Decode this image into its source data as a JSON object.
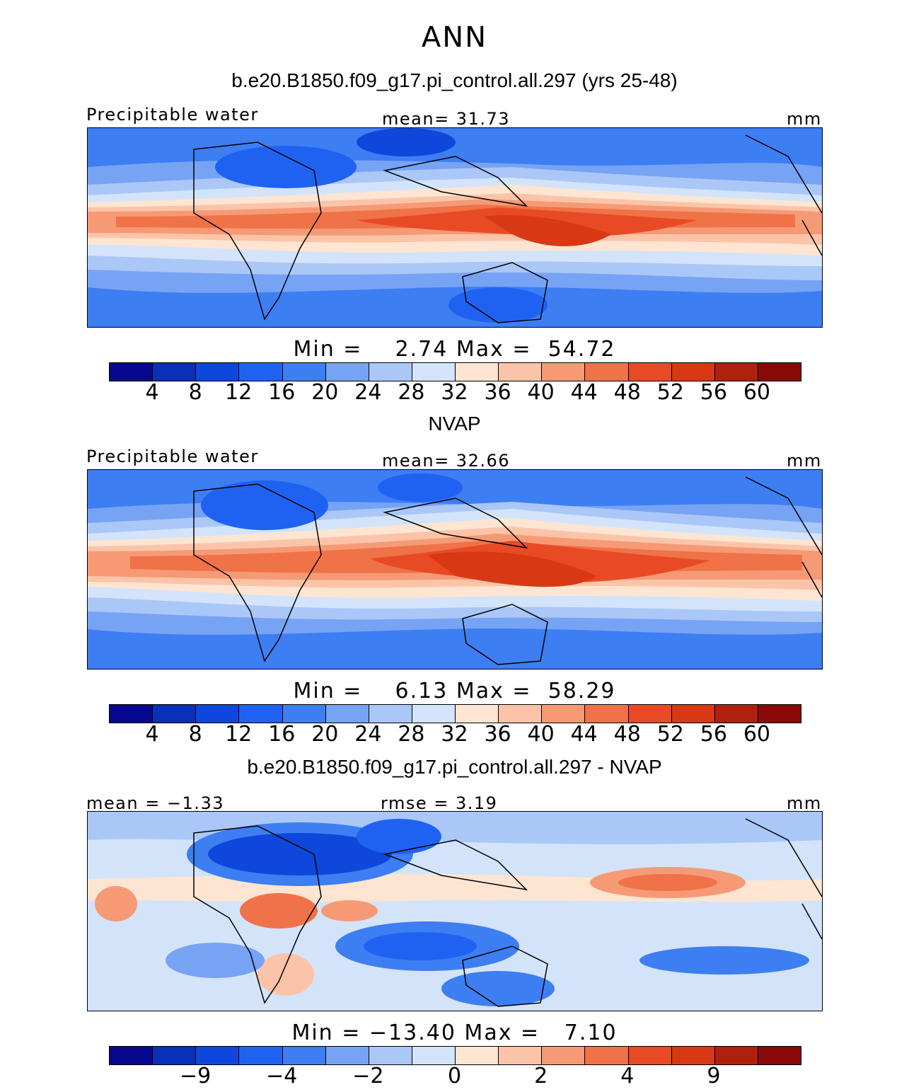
{
  "season": "ANN",
  "colors": [
    "#08088f",
    "#0a2fb8",
    "#0d47db",
    "#1f62f2",
    "#3d7ef2",
    "#77a3f5",
    "#aac7f7",
    "#d3e4fa",
    "#fde5d2",
    "#fbc4a8",
    "#f69a76",
    "#f07248",
    "#e84a26",
    "#d83814",
    "#b0200e",
    "#8a0808"
  ],
  "panels": [
    {
      "title": "b.e20.B1850.f09_g17.pi_control.all.297 (yrs 25-48)",
      "left_label": "Precipitable water",
      "center_label": "mean=  31.73",
      "units": "mm",
      "minmax": "Min =    2.74 Max =  54.72",
      "ticks": [
        "4",
        "8",
        "12",
        "16",
        "20",
        "24",
        "28",
        "32",
        "36",
        "40",
        "44",
        "48",
        "52",
        "56",
        "60"
      ]
    },
    {
      "title": "NVAP",
      "left_label": "Precipitable water",
      "center_label": "mean=  32.66",
      "units": "mm",
      "minmax": "Min =    6.13 Max =  58.29",
      "ticks": [
        "4",
        "8",
        "12",
        "16",
        "20",
        "24",
        "28",
        "32",
        "36",
        "40",
        "44",
        "48",
        "52",
        "56",
        "60"
      ]
    },
    {
      "title": "b.e20.B1850.f09_g17.pi_control.all.297 - NVAP",
      "left_label": "mean =  −1.33",
      "center_label": "rmse =   3.19",
      "units": "mm",
      "minmax": "Min = −13.40 Max =   7.10",
      "ticks": [
        "−9",
        "−4",
        "−2",
        "0",
        "2",
        "4",
        "9"
      ]
    }
  ]
}
